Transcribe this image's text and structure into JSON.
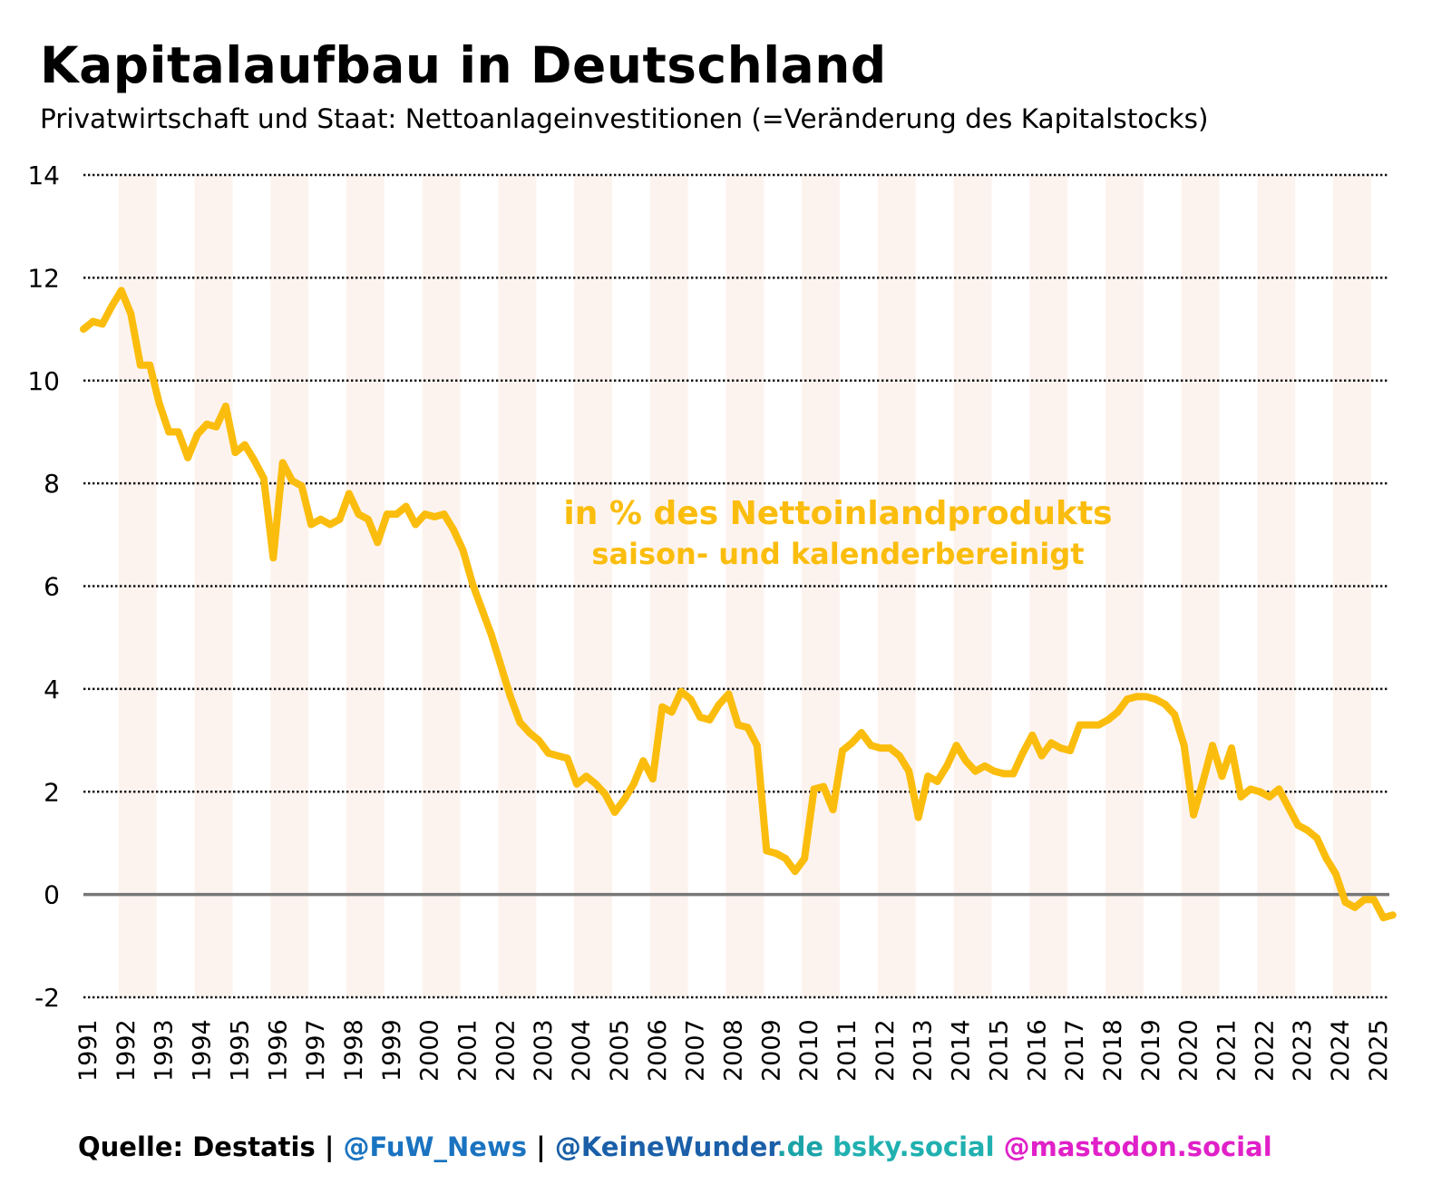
{
  "header": {
    "title": "Kapitalaufbau in Deutschland",
    "subtitle": "Privatwirtschaft und Staat: Nettoanlageinvestitionen (=Veränderung des Kapitalstocks)"
  },
  "footer": {
    "source": "Quelle: Destatis",
    "sep1": " | ",
    "handle1": "@FuW_News",
    "sep2": " | ",
    "handle2_main": "@KeineWunder",
    "handle2_domain": ".de",
    "bsky": " bsky.social",
    "mastodon": " @mastodon.social",
    "colors": {
      "source": "#000000",
      "handle1": "#1a73c0",
      "handle2_main": "#1a5fa8",
      "handle2_domain": "#1aa3a8",
      "bsky": "#20b0b0",
      "mastodon": "#e020c8"
    }
  },
  "chart_data": {
    "type": "line",
    "title": "Kapitalaufbau in Deutschland",
    "subtitle": "Privatwirtschaft und Staat: Nettoanlageinvestitionen (=Veränderung des Kapitalstocks)",
    "xlabel": "",
    "ylabel": "",
    "ylim": [
      -2,
      14
    ],
    "yticks": [
      14,
      12,
      10,
      8,
      6,
      4,
      2,
      0,
      -2
    ],
    "ytick_labels": [
      "14",
      "12",
      "10",
      "8",
      "6",
      "4",
      "2",
      "0",
      "-2"
    ],
    "xticks": [
      "1991",
      "1992",
      "1993",
      "1994",
      "1995",
      "1996",
      "1997",
      "1998",
      "1999",
      "2000",
      "2001",
      "2002",
      "2003",
      "2004",
      "2005",
      "2006",
      "2007",
      "2008",
      "2009",
      "2010",
      "2011",
      "2012",
      "2013",
      "2014",
      "2015",
      "2016",
      "2017",
      "2018",
      "2019",
      "2020",
      "2021",
      "2022",
      "2023",
      "2024",
      "2025"
    ],
    "grid": "horizontal dotted",
    "zero_line": true,
    "shaded_years": "alternate years starting 1992",
    "annotation": {
      "line1": "in % des Nettoinlandprodukts",
      "line2": "saison- und kalenderbereinigt"
    },
    "line_color": "#fbbd0d",
    "band_color": "#fdf3ee",
    "frequency": "quarterly",
    "start": "1991-Q1",
    "series": [
      {
        "name": "Nettoanlageinvestitionen in % des Nettoinlandprodukts",
        "values": [
          11.0,
          11.15,
          11.1,
          11.45,
          11.75,
          11.3,
          10.3,
          10.3,
          9.55,
          9.0,
          9.0,
          8.5,
          8.95,
          9.15,
          9.1,
          9.5,
          8.6,
          8.75,
          8.45,
          8.1,
          6.55,
          8.4,
          8.05,
          7.95,
          7.2,
          7.3,
          7.2,
          7.3,
          7.8,
          7.4,
          7.3,
          6.85,
          7.4,
          7.4,
          7.55,
          7.2,
          7.4,
          7.35,
          7.4,
          7.1,
          6.7,
          6.05,
          5.55,
          5.05,
          4.45,
          3.85,
          3.35,
          3.15,
          3.0,
          2.75,
          2.7,
          2.65,
          2.15,
          2.3,
          2.15,
          1.95,
          1.6,
          1.85,
          2.15,
          2.6,
          2.25,
          3.65,
          3.55,
          3.95,
          3.8,
          3.45,
          3.4,
          3.7,
          3.9,
          3.3,
          3.25,
          2.9,
          0.85,
          0.8,
          0.7,
          0.45,
          0.7,
          2.05,
          2.1,
          1.65,
          2.8,
          2.95,
          3.15,
          2.9,
          2.85,
          2.85,
          2.7,
          2.4,
          1.5,
          2.3,
          2.2,
          2.5,
          2.9,
          2.6,
          2.4,
          2.5,
          2.4,
          2.35,
          2.35,
          2.75,
          3.1,
          2.7,
          2.95,
          2.85,
          2.8,
          3.3,
          3.3,
          3.3,
          3.4,
          3.55,
          3.8,
          3.85,
          3.85,
          3.8,
          3.7,
          3.5,
          2.9,
          1.55,
          2.2,
          2.9,
          2.3,
          2.85,
          1.9,
          2.05,
          2.0,
          1.9,
          2.05,
          1.7,
          1.35,
          1.25,
          1.1,
          0.7,
          0.4,
          -0.15,
          -0.25,
          -0.1,
          -0.1,
          -0.45,
          -0.4
        ]
      }
    ]
  }
}
